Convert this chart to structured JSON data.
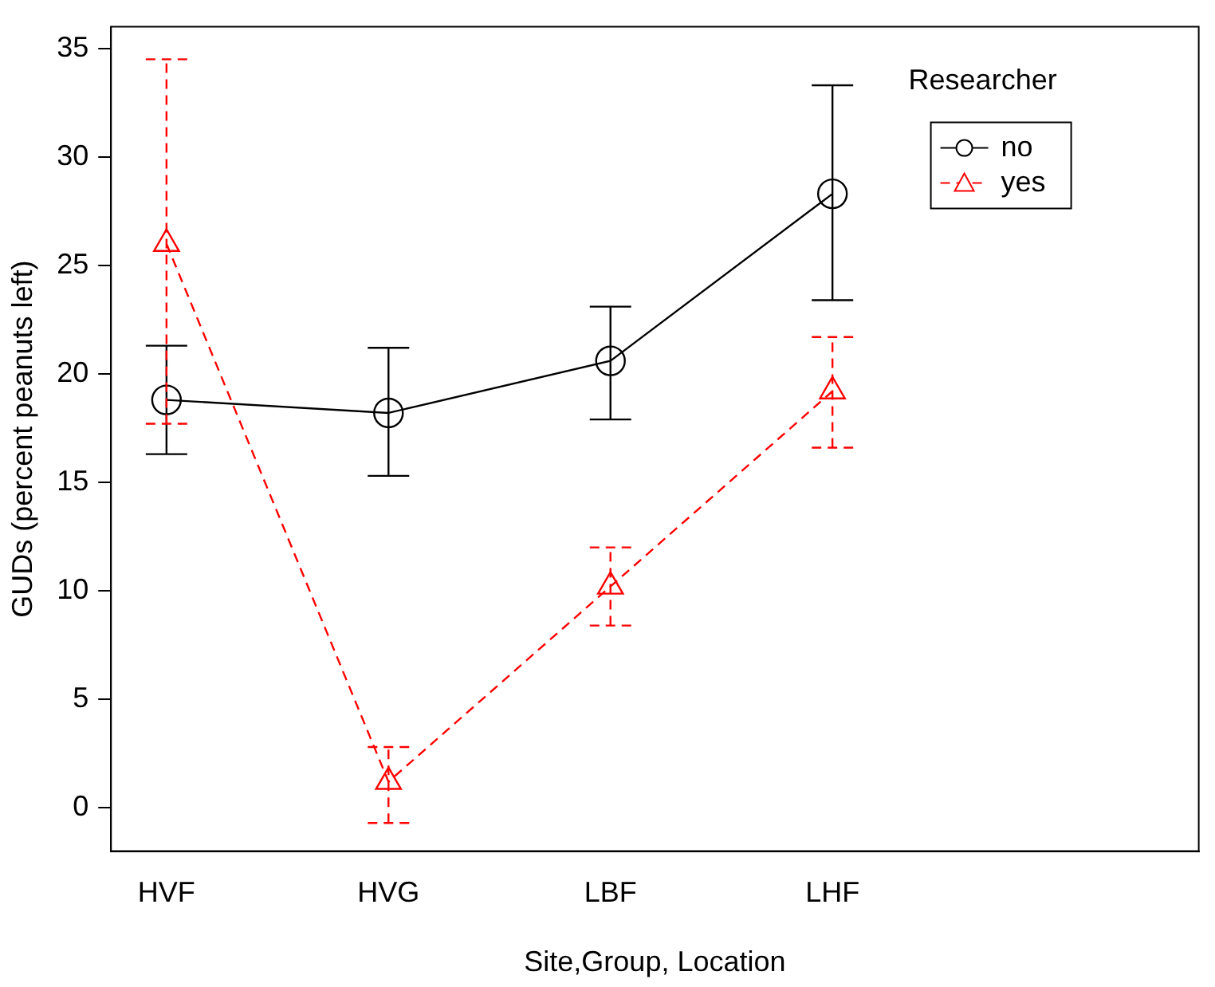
{
  "chart_data": {
    "type": "line",
    "xlabel": "Site,Group, Location",
    "ylabel": "GUDs (percent peanuts left)",
    "legend_title": "Researcher",
    "legend": "top right",
    "grid": false,
    "categories": [
      "HVF",
      "HVG",
      "LBF",
      "LHF"
    ],
    "ylim": [
      -2,
      36
    ],
    "yticks": [
      0,
      5,
      10,
      15,
      20,
      25,
      30,
      35
    ],
    "series": [
      {
        "name": "no",
        "color": "#000000",
        "marker": "circle",
        "line_style": "solid",
        "values": [
          18.8,
          18.2,
          20.6,
          28.3
        ],
        "errors": [
          [
            16.3,
            21.3
          ],
          [
            15.3,
            21.2
          ],
          [
            17.9,
            23.1
          ],
          [
            23.4,
            33.3
          ]
        ]
      },
      {
        "name": "yes",
        "color": "#ff0000",
        "marker": "triangle",
        "line_style": "dashed",
        "values": [
          26.0,
          1.2,
          10.2,
          19.2
        ],
        "errors": [
          [
            17.7,
            34.5
          ],
          [
            -0.7,
            2.8
          ],
          [
            8.4,
            12.0
          ],
          [
            16.6,
            21.7
          ]
        ]
      }
    ]
  }
}
